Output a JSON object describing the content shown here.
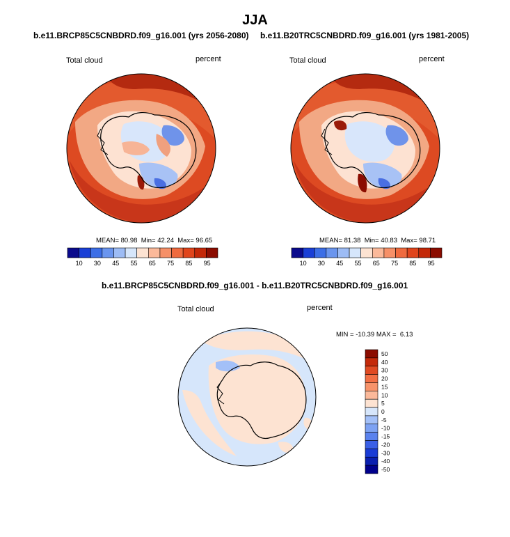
{
  "title": "JJA",
  "panels": [
    {
      "title": "b.e11.BRCP85C5CNBDRD.f09_g16.001 (yrs 2056-2080)",
      "left_label": "Total cloud",
      "right_label": "percent",
      "stats": {
        "mean": "80.98",
        "min": "42.24",
        "max": "96.65"
      }
    },
    {
      "title": "b.e11.B20TRC5CNBDRD.f09_g16.001 (yrs 1981-2005)",
      "left_label": "Total cloud",
      "right_label": "percent",
      "stats": {
        "mean": "81.38",
        "min": "40.83",
        "max": "98.71"
      }
    },
    {
      "title": "b.e11.BRCP85C5CNBDRD.f09_g16.001 - b.e11.B20TRC5CNBDRD.f09_g16.001",
      "left_label": "Total cloud",
      "right_label": "percent",
      "stats": {
        "min": "-10.39",
        "max": "6.13"
      }
    }
  ],
  "stat_labels": {
    "mean": "MEAN=",
    "min": "Min=",
    "max": "Max=",
    "diff_min": "MIN =",
    "diff_max": "MAX ="
  },
  "colorbar_abs": {
    "colors": [
      "#0a0a8c",
      "#1a3fd6",
      "#3c6ee6",
      "#6a95ee",
      "#9dbcf5",
      "#d6e6fb",
      "#fde3d2",
      "#fbb99a",
      "#f69068",
      "#ef6a3e",
      "#e0451c",
      "#c32808",
      "#8b0c00"
    ],
    "labels": [
      "10",
      "30",
      "45",
      "55",
      "65",
      "75",
      "85",
      "95"
    ]
  },
  "colorbar_diff": {
    "colors": [
      "#00008c",
      "#0a1fb0",
      "#1a3cd6",
      "#3a5fe6",
      "#5a82ee",
      "#7da2f3",
      "#a3c0f8",
      "#d6e6fb",
      "#fde3d2",
      "#fbb99a",
      "#f7936a",
      "#f26f44",
      "#e04a22",
      "#c42a0a",
      "#8b0c00"
    ],
    "labels": [
      "50",
      "40",
      "30",
      "20",
      "15",
      "10",
      "5",
      "0",
      "-5",
      "-10",
      "-15",
      "-20",
      "-30",
      "-40",
      "-50"
    ]
  }
}
